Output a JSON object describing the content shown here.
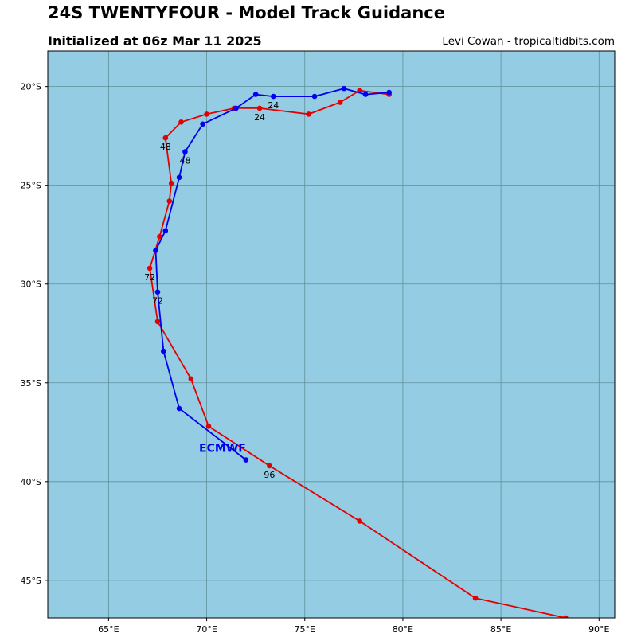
{
  "header": {
    "title": "24S TWENTYFOUR - Model Track Guidance",
    "subtitle": "Initialized at 06z Mar 11 2025",
    "credit": "Levi Cowan - tropicaltidbits.com"
  },
  "colors": {
    "ocean": "#94cde3",
    "grid": "#5f8f9a",
    "red_track": "#e50000",
    "blue_track": "#0000f0"
  },
  "chart_data": {
    "type": "line",
    "title": "24S TWENTYFOUR - Model Track Guidance",
    "subtitle": "Initialized at 06z Mar 11 2025",
    "x_axis": {
      "label": "",
      "range": [
        61.9,
        90.8
      ],
      "ticks": [
        65,
        70,
        75,
        80,
        85,
        90
      ],
      "tick_labels": [
        "65°E",
        "70°E",
        "75°E",
        "80°E",
        "85°E",
        "90°E"
      ]
    },
    "y_axis": {
      "label": "",
      "range": [
        -46.9,
        -18.2
      ],
      "ticks": [
        -20,
        -25,
        -30,
        -35,
        -40,
        -45
      ],
      "tick_labels": [
        "20°S",
        "25°S",
        "30°S",
        "35°S",
        "40°S",
        "45°S"
      ]
    },
    "grid": true,
    "series": [
      {
        "name": "",
        "color": "#e50000",
        "points": [
          [
            79.3,
            -20.4
          ],
          [
            77.8,
            -20.2
          ],
          [
            76.8,
            -20.8
          ],
          [
            75.2,
            -21.4
          ],
          [
            72.7,
            -21.1
          ],
          [
            71.4,
            -21.1
          ],
          [
            70.0,
            -21.4
          ],
          [
            68.7,
            -21.8
          ],
          [
            67.9,
            -22.6
          ],
          [
            68.2,
            -24.9
          ],
          [
            68.1,
            -25.8
          ],
          [
            67.6,
            -27.6
          ],
          [
            67.1,
            -29.2
          ],
          [
            67.5,
            -31.9
          ],
          [
            69.2,
            -34.8
          ],
          [
            70.1,
            -37.2
          ],
          [
            73.2,
            -39.2
          ],
          [
            77.8,
            -42.0
          ],
          [
            83.7,
            -45.9
          ],
          [
            88.3,
            -46.9
          ]
        ],
        "point_labels": [
          {
            "index": 4,
            "text": "24"
          },
          {
            "index": 8,
            "text": "48"
          },
          {
            "index": 12,
            "text": "72"
          },
          {
            "index": 16,
            "text": "96"
          }
        ]
      },
      {
        "name": "ECMWF",
        "color": "#0000f0",
        "points": [
          [
            79.3,
            -20.3
          ],
          [
            78.1,
            -20.4
          ],
          [
            77.0,
            -20.1
          ],
          [
            75.5,
            -20.5
          ],
          [
            73.4,
            -20.5
          ],
          [
            72.5,
            -20.4
          ],
          [
            71.5,
            -21.1
          ],
          [
            69.8,
            -21.9
          ],
          [
            68.9,
            -23.3
          ],
          [
            68.6,
            -24.6
          ],
          [
            67.9,
            -27.3
          ],
          [
            67.4,
            -28.3
          ],
          [
            67.5,
            -30.4
          ],
          [
            67.8,
            -33.4
          ],
          [
            68.6,
            -36.3
          ],
          [
            72.0,
            -38.9
          ]
        ],
        "point_labels": [
          {
            "index": 4,
            "text": "24"
          },
          {
            "index": 8,
            "text": "48"
          },
          {
            "index": 12,
            "text": "72"
          }
        ],
        "end_label": "ECMWF"
      }
    ]
  }
}
